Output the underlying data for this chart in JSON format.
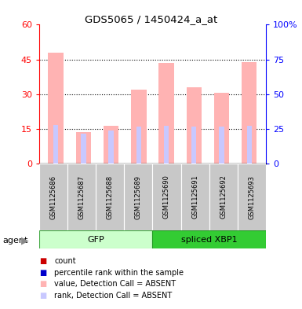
{
  "title": "GDS5065 / 1450424_a_at",
  "samples": [
    "GSM1125686",
    "GSM1125687",
    "GSM1125688",
    "GSM1125689",
    "GSM1125690",
    "GSM1125691",
    "GSM1125692",
    "GSM1125693"
  ],
  "value_absent": [
    48.0,
    13.5,
    16.5,
    32.0,
    43.5,
    33.0,
    30.5,
    44.0
  ],
  "rank_absent": [
    28.0,
    21.5,
    24.0,
    27.0,
    27.5,
    27.0,
    27.0,
    27.5
  ],
  "left_ylim": [
    0,
    60
  ],
  "right_ylim": [
    0,
    100
  ],
  "left_yticks": [
    0,
    15,
    30,
    45,
    60
  ],
  "right_yticks": [
    0,
    25,
    50,
    75,
    100
  ],
  "right_yticklabels": [
    "0",
    "25",
    "50",
    "75",
    "100%"
  ],
  "bar_color_absent": "#ffb3b3",
  "rank_color_absent": "#c8c8ff",
  "legend_count_color": "#cc0000",
  "legend_rank_color": "#0000cc",
  "legend_value_absent_color": "#ffb3b3",
  "legend_rank_absent_color": "#c8c8ff",
  "gfp_light": "#ccffcc",
  "gfp_dark": "#33cc33",
  "xbp_color": "#33cc33",
  "bar_width": 0.55,
  "rank_bar_width": 0.18
}
